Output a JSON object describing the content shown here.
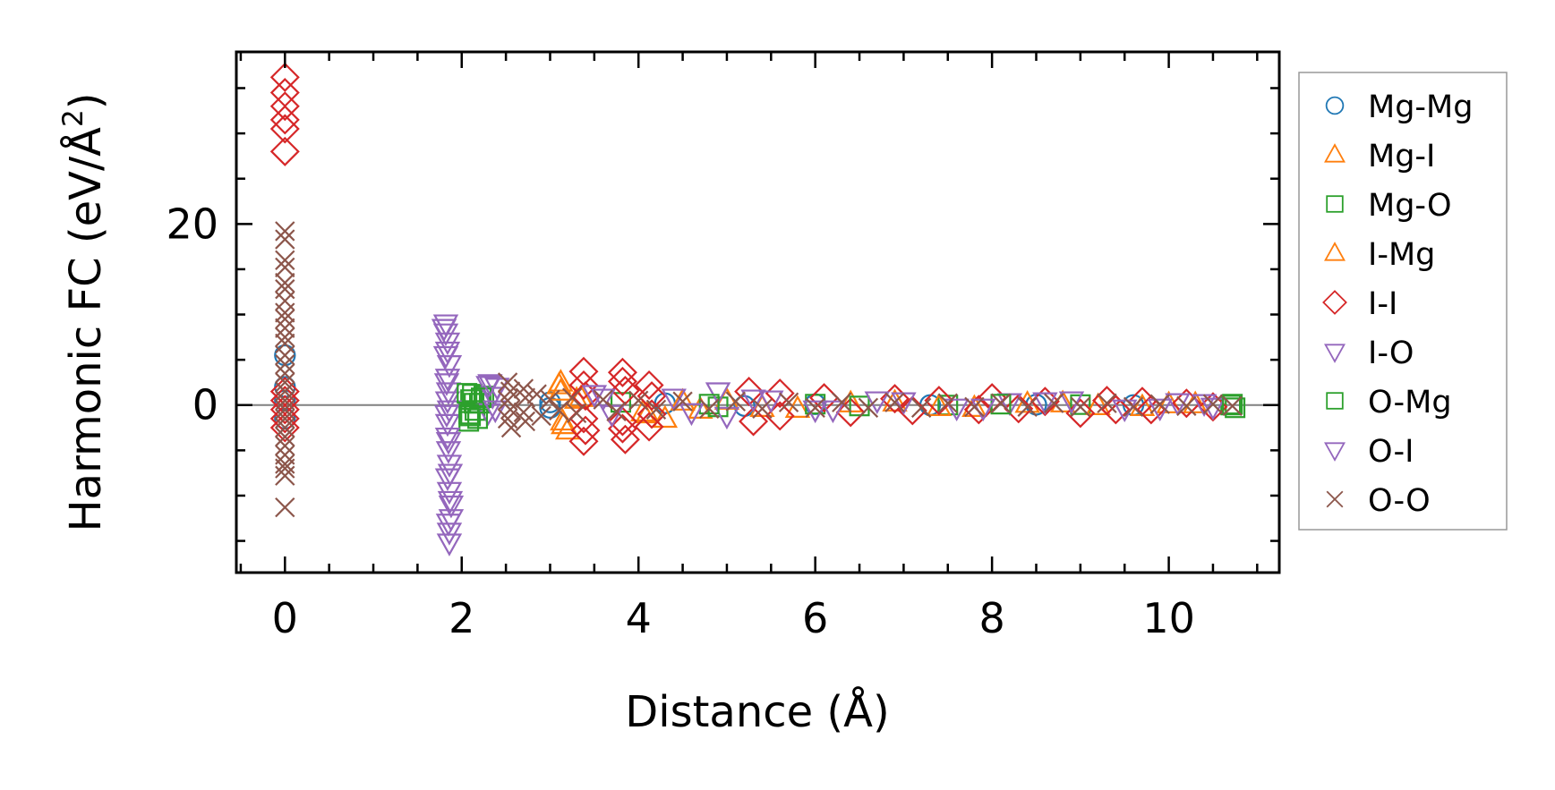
{
  "chart_data": {
    "type": "scatter",
    "title": "",
    "xlabel": "Distance (Å)",
    "ylabel_main": "Harmonic FC (eV/Å",
    "ylabel_sup": "2",
    "ylabel_close": ")",
    "xlim": [
      -0.55,
      11.25
    ],
    "ylim": [
      -18.5,
      39
    ],
    "xticks": [
      {
        "value": 0,
        "label": "0"
      },
      {
        "value": 2,
        "label": "2"
      },
      {
        "value": 4,
        "label": "4"
      },
      {
        "value": 6,
        "label": "6"
      },
      {
        "value": 8,
        "label": "8"
      },
      {
        "value": 10,
        "label": "10"
      }
    ],
    "yticks": [
      {
        "value": 0,
        "label": "0"
      },
      {
        "value": 20,
        "label": "20"
      }
    ],
    "zero_line": true,
    "grid": false,
    "legend_position": "outside right",
    "series": [
      {
        "name": "Mg-Mg",
        "marker": "circle",
        "color": "#1f77b4",
        "points": [
          [
            0,
            0.5
          ],
          [
            0,
            -1.5
          ],
          [
            0,
            2.0
          ],
          [
            0,
            5.5
          ],
          [
            3.0,
            0.3
          ],
          [
            3.0,
            -0.3
          ],
          [
            4.3,
            0.2
          ],
          [
            5.2,
            -0.1
          ],
          [
            6.0,
            0.1
          ],
          [
            7.3,
            0.0
          ],
          [
            8.5,
            0.05
          ],
          [
            9.6,
            0.0
          ]
        ]
      },
      {
        "name": "Mg-I",
        "marker": "triangle-up",
        "color": "#ff7f0e",
        "points": [
          [
            3.12,
            2.5
          ],
          [
            3.12,
            1.5
          ],
          [
            3.15,
            -2.2
          ],
          [
            3.2,
            -2.8
          ],
          [
            3.35,
            0.8
          ],
          [
            4.05,
            -0.8
          ],
          [
            4.3,
            -1.5
          ],
          [
            4.7,
            -0.5
          ],
          [
            5.0,
            0.5
          ],
          [
            5.8,
            -0.4
          ],
          [
            6.9,
            0.3
          ],
          [
            7.8,
            -0.3
          ],
          [
            8.8,
            0.2
          ],
          [
            9.7,
            -0.2
          ],
          [
            10.3,
            0.1
          ]
        ]
      },
      {
        "name": "Mg-O",
        "marker": "square",
        "color": "#2ca02c",
        "points": [
          [
            2.08,
            -1.8
          ],
          [
            2.1,
            -1.2
          ],
          [
            2.12,
            1.2
          ],
          [
            2.1,
            0.6
          ],
          [
            2.15,
            -0.6
          ],
          [
            2.2,
            0.2
          ],
          [
            2.25,
            1.0
          ],
          [
            3.8,
            0.3
          ],
          [
            4.9,
            -0.2
          ],
          [
            6.0,
            0.1
          ],
          [
            7.5,
            0.0
          ],
          [
            9.0,
            0.05
          ],
          [
            10.7,
            0.0
          ],
          [
            10.75,
            -0.3
          ]
        ]
      },
      {
        "name": "I-Mg",
        "marker": "triangle-up",
        "color": "#ff7f0e",
        "points": [
          [
            3.1,
            2.2
          ],
          [
            3.14,
            -1.8
          ],
          [
            3.3,
            0.6
          ],
          [
            4.1,
            -1.0
          ],
          [
            4.5,
            0.4
          ],
          [
            5.4,
            -0.3
          ],
          [
            6.4,
            0.2
          ],
          [
            7.4,
            -0.2
          ],
          [
            8.4,
            0.15
          ],
          [
            9.2,
            -0.1
          ],
          [
            10.0,
            0.1
          ]
        ]
      },
      {
        "name": "I-I",
        "marker": "diamond",
        "color": "#d62728",
        "points": [
          [
            0,
            36.2
          ],
          [
            0,
            34.5
          ],
          [
            0,
            33.0
          ],
          [
            0,
            31.5
          ],
          [
            0,
            30.5
          ],
          [
            0,
            28.0
          ],
          [
            0,
            1.5
          ],
          [
            0,
            0.5
          ],
          [
            0,
            -0.5
          ],
          [
            0,
            -1.5
          ],
          [
            0,
            -2.5
          ],
          [
            3.38,
            3.7
          ],
          [
            3.38,
            2.2
          ],
          [
            3.4,
            1.0
          ],
          [
            3.38,
            -1.5
          ],
          [
            3.4,
            -2.8
          ],
          [
            3.38,
            -4.0
          ],
          [
            3.82,
            3.6
          ],
          [
            3.82,
            2.6
          ],
          [
            3.85,
            1.6
          ],
          [
            3.82,
            -1.8
          ],
          [
            3.82,
            -2.6
          ],
          [
            3.85,
            -3.8
          ],
          [
            4.12,
            2.2
          ],
          [
            4.15,
            1.0
          ],
          [
            4.15,
            -1.0
          ],
          [
            4.12,
            -2.4
          ],
          [
            5.25,
            1.5
          ],
          [
            5.3,
            -1.8
          ],
          [
            5.6,
            1.3
          ],
          [
            5.6,
            -1.2
          ],
          [
            6.1,
            0.8
          ],
          [
            6.4,
            -0.8
          ],
          [
            6.9,
            0.7
          ],
          [
            7.1,
            -0.6
          ],
          [
            7.4,
            0.5
          ],
          [
            7.85,
            -0.5
          ],
          [
            8.0,
            0.8
          ],
          [
            8.3,
            -0.4
          ],
          [
            8.6,
            0.4
          ],
          [
            9.0,
            -0.9
          ],
          [
            9.3,
            0.5
          ],
          [
            9.4,
            -0.5
          ],
          [
            9.7,
            0.4
          ],
          [
            9.8,
            -0.5
          ],
          [
            10.2,
            0.2
          ],
          [
            10.5,
            -0.2
          ]
        ]
      },
      {
        "name": "I-O",
        "marker": "triangle-down",
        "color": "#9467bd",
        "points": [
          [
            1.82,
            9.0
          ],
          [
            1.82,
            8.0
          ],
          [
            1.84,
            7.0
          ],
          [
            1.84,
            6.0
          ],
          [
            1.86,
            4.5
          ],
          [
            1.84,
            3.0
          ],
          [
            1.85,
            1.5
          ],
          [
            1.84,
            0.5
          ],
          [
            1.86,
            -0.5
          ],
          [
            1.84,
            -2.0
          ],
          [
            1.84,
            -3.5
          ],
          [
            1.85,
            -5.0
          ],
          [
            1.86,
            -6.5
          ],
          [
            1.84,
            -8.0
          ],
          [
            1.86,
            -9.5
          ],
          [
            1.88,
            -11.0
          ],
          [
            1.88,
            -12.5
          ],
          [
            1.86,
            -14.0
          ],
          [
            1.86,
            -15.2
          ],
          [
            2.3,
            2.2
          ],
          [
            2.35,
            1.0
          ],
          [
            2.3,
            -0.8
          ],
          [
            2.4,
            2.0
          ],
          [
            3.5,
            1.2
          ],
          [
            3.7,
            -1.0
          ],
          [
            4.4,
            0.8
          ],
          [
            4.9,
            1.5
          ],
          [
            5.0,
            -1.2
          ],
          [
            5.5,
            0.6
          ],
          [
            6.2,
            -0.5
          ],
          [
            7.0,
            0.4
          ],
          [
            7.6,
            -0.3
          ],
          [
            8.2,
            0.3
          ],
          [
            8.9,
            0.5
          ],
          [
            9.5,
            -0.4
          ],
          [
            10.1,
            0.3
          ],
          [
            10.5,
            -0.2
          ]
        ]
      },
      {
        "name": "O-Mg",
        "marker": "square",
        "color": "#2ca02c",
        "points": [
          [
            2.06,
            1.3
          ],
          [
            2.08,
            -1.0
          ],
          [
            2.14,
            0.2
          ],
          [
            2.18,
            -1.5
          ],
          [
            2.22,
            0.8
          ],
          [
            4.8,
            0.1
          ],
          [
            6.5,
            -0.1
          ],
          [
            8.1,
            0.1
          ],
          [
            10.72,
            0.1
          ]
        ]
      },
      {
        "name": "O-I",
        "marker": "triangle-down",
        "color": "#9467bd",
        "points": [
          [
            1.8,
            8.5
          ],
          [
            1.82,
            5.5
          ],
          [
            1.83,
            2.5
          ],
          [
            1.83,
            -1.0
          ],
          [
            1.85,
            -4.0
          ],
          [
            1.87,
            -7.5
          ],
          [
            1.87,
            -10.5
          ],
          [
            1.85,
            -13.0
          ],
          [
            2.32,
            2.4
          ],
          [
            2.38,
            -0.5
          ],
          [
            3.6,
            0.8
          ],
          [
            4.6,
            -0.8
          ],
          [
            5.3,
            0.7
          ],
          [
            6.0,
            -0.5
          ],
          [
            6.7,
            0.5
          ],
          [
            7.9,
            -0.3
          ],
          [
            8.6,
            0.4
          ],
          [
            9.9,
            -0.3
          ],
          [
            10.4,
            0.2
          ]
        ]
      },
      {
        "name": "O-O",
        "marker": "x",
        "color": "#8c564b",
        "points": [
          [
            0,
            19.2
          ],
          [
            0,
            18.3
          ],
          [
            0,
            16.0
          ],
          [
            0,
            15.2
          ],
          [
            0,
            13.5
          ],
          [
            0,
            12.8
          ],
          [
            0,
            11.5
          ],
          [
            0,
            10.2
          ],
          [
            0,
            9.5
          ],
          [
            0,
            8.5
          ],
          [
            0,
            7.5
          ],
          [
            0,
            6.8
          ],
          [
            0,
            5.5
          ],
          [
            0,
            4.5
          ],
          [
            0,
            3.5
          ],
          [
            0,
            2.5
          ],
          [
            0,
            1.5
          ],
          [
            0,
            0.5
          ],
          [
            0,
            -0.5
          ],
          [
            0,
            -1.5
          ],
          [
            0,
            -2.5
          ],
          [
            0,
            -3.5
          ],
          [
            0,
            -4.5
          ],
          [
            0,
            -5.5
          ],
          [
            0,
            -6.5
          ],
          [
            0,
            -7.0
          ],
          [
            0,
            -7.8
          ],
          [
            0,
            -11.3
          ],
          [
            2.52,
            2.5
          ],
          [
            2.55,
            1.5
          ],
          [
            2.52,
            0.5
          ],
          [
            2.55,
            -0.5
          ],
          [
            2.52,
            -1.5
          ],
          [
            2.56,
            -2.5
          ],
          [
            2.7,
            1.8
          ],
          [
            2.72,
            0.8
          ],
          [
            2.7,
            -0.8
          ],
          [
            2.72,
            -1.8
          ],
          [
            2.85,
            1.2
          ],
          [
            2.9,
            -1.2
          ],
          [
            3.0,
            0.6
          ],
          [
            3.1,
            -0.6
          ],
          [
            3.25,
            0.8
          ],
          [
            3.3,
            -0.9
          ],
          [
            3.6,
            0.6
          ],
          [
            3.75,
            -0.7
          ],
          [
            4.0,
            0.5
          ],
          [
            4.2,
            -0.5
          ],
          [
            4.5,
            0.4
          ],
          [
            4.8,
            -0.4
          ],
          [
            5.1,
            0.4
          ],
          [
            5.4,
            -0.4
          ],
          [
            5.7,
            0.3
          ],
          [
            6.0,
            -0.3
          ],
          [
            6.3,
            0.3
          ],
          [
            6.6,
            -0.3
          ],
          [
            6.9,
            0.3
          ],
          [
            7.2,
            -0.3
          ],
          [
            7.5,
            0.2
          ],
          [
            7.8,
            -0.2
          ],
          [
            8.1,
            0.2
          ],
          [
            8.4,
            -0.2
          ],
          [
            8.7,
            0.2
          ],
          [
            9.0,
            -0.2
          ],
          [
            9.3,
            0.2
          ],
          [
            9.6,
            -0.2
          ],
          [
            9.9,
            0.1
          ],
          [
            10.2,
            -0.1
          ],
          [
            10.5,
            0.1
          ],
          [
            10.72,
            -0.1
          ]
        ]
      }
    ]
  }
}
